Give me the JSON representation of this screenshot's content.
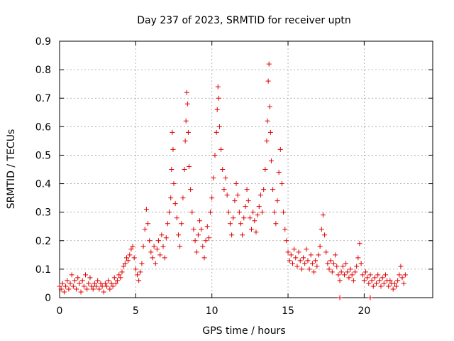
{
  "chart_data": {
    "type": "scatter",
    "title": "Day 237 of 2023, SRMTID for receiver uptn",
    "xlabel": "GPS time / hours",
    "ylabel": "SRMTID / TECUs",
    "xlim": [
      0,
      24.5
    ],
    "ylim": [
      0,
      0.9
    ],
    "xticks": [
      0,
      5,
      10,
      15,
      20
    ],
    "xtick_labels": [
      "0",
      "5",
      "10",
      "15",
      "20"
    ],
    "yticks": [
      0,
      0.1,
      0.2,
      0.3,
      0.4,
      0.5,
      0.6,
      0.7,
      0.8,
      0.9
    ],
    "ytick_labels": [
      "0",
      "0.1",
      "0.2",
      "0.3",
      "0.4",
      "0.5",
      "0.6",
      "0.7",
      "0.8",
      "0.9"
    ],
    "grid": true,
    "marker": "+",
    "series": [
      {
        "name": "SRMTID",
        "color": "#e00000",
        "points": [
          [
            0.0,
            0.04
          ],
          [
            0.1,
            0.03
          ],
          [
            0.2,
            0.05
          ],
          [
            0.3,
            0.02
          ],
          [
            0.4,
            0.04
          ],
          [
            0.5,
            0.06
          ],
          [
            0.6,
            0.03
          ],
          [
            0.7,
            0.05
          ],
          [
            0.8,
            0.08
          ],
          [
            0.9,
            0.04
          ],
          [
            1.0,
            0.06
          ],
          [
            1.1,
            0.03
          ],
          [
            1.2,
            0.07
          ],
          [
            1.3,
            0.05
          ],
          [
            1.4,
            0.02
          ],
          [
            1.5,
            0.06
          ],
          [
            1.6,
            0.04
          ],
          [
            1.7,
            0.08
          ],
          [
            1.8,
            0.03
          ],
          [
            1.9,
            0.05
          ],
          [
            2.0,
            0.07
          ],
          [
            2.1,
            0.04
          ],
          [
            2.2,
            0.03
          ],
          [
            2.3,
            0.05
          ],
          [
            2.4,
            0.04
          ],
          [
            2.5,
            0.06
          ],
          [
            2.6,
            0.03
          ],
          [
            2.7,
            0.05
          ],
          [
            2.8,
            0.04
          ],
          [
            2.9,
            0.02
          ],
          [
            3.0,
            0.05
          ],
          [
            3.1,
            0.04
          ],
          [
            3.2,
            0.06
          ],
          [
            3.3,
            0.03
          ],
          [
            3.4,
            0.05
          ],
          [
            3.5,
            0.04
          ],
          [
            3.6,
            0.07
          ],
          [
            3.7,
            0.05
          ],
          [
            3.8,
            0.06
          ],
          [
            3.9,
            0.08
          ],
          [
            4.0,
            0.07
          ],
          [
            4.1,
            0.09
          ],
          [
            4.2,
            0.11
          ],
          [
            4.3,
            0.12
          ],
          [
            4.4,
            0.14
          ],
          [
            4.5,
            0.13
          ],
          [
            4.6,
            0.15
          ],
          [
            4.7,
            0.17
          ],
          [
            4.8,
            0.18
          ],
          [
            4.9,
            0.14
          ],
          [
            5.0,
            0.1
          ],
          [
            5.1,
            0.08
          ],
          [
            5.2,
            0.06
          ],
          [
            5.3,
            0.09
          ],
          [
            5.4,
            0.12
          ],
          [
            5.5,
            0.18
          ],
          [
            5.6,
            0.24
          ],
          [
            5.7,
            0.31
          ],
          [
            5.8,
            0.26
          ],
          [
            5.9,
            0.2
          ],
          [
            6.0,
            0.16
          ],
          [
            6.1,
            0.14
          ],
          [
            6.2,
            0.18
          ],
          [
            6.3,
            0.12
          ],
          [
            6.4,
            0.17
          ],
          [
            6.5,
            0.2
          ],
          [
            6.6,
            0.15
          ],
          [
            6.7,
            0.22
          ],
          [
            6.8,
            0.18
          ],
          [
            6.9,
            0.14
          ],
          [
            7.0,
            0.21
          ],
          [
            7.1,
            0.26
          ],
          [
            7.2,
            0.3
          ],
          [
            7.3,
            0.35
          ],
          [
            7.35,
            0.45
          ],
          [
            7.4,
            0.58
          ],
          [
            7.45,
            0.52
          ],
          [
            7.5,
            0.4
          ],
          [
            7.6,
            0.33
          ],
          [
            7.7,
            0.28
          ],
          [
            7.8,
            0.22
          ],
          [
            7.9,
            0.18
          ],
          [
            8.0,
            0.26
          ],
          [
            8.1,
            0.35
          ],
          [
            8.2,
            0.45
          ],
          [
            8.25,
            0.55
          ],
          [
            8.3,
            0.62
          ],
          [
            8.35,
            0.72
          ],
          [
            8.4,
            0.68
          ],
          [
            8.45,
            0.58
          ],
          [
            8.5,
            0.46
          ],
          [
            8.6,
            0.38
          ],
          [
            8.7,
            0.3
          ],
          [
            8.8,
            0.24
          ],
          [
            8.9,
            0.2
          ],
          [
            9.0,
            0.16
          ],
          [
            9.1,
            0.22
          ],
          [
            9.2,
            0.27
          ],
          [
            9.3,
            0.24
          ],
          [
            9.4,
            0.18
          ],
          [
            9.5,
            0.14
          ],
          [
            9.6,
            0.2
          ],
          [
            9.7,
            0.25
          ],
          [
            9.8,
            0.21
          ],
          [
            9.9,
            0.3
          ],
          [
            10.0,
            0.35
          ],
          [
            10.1,
            0.42
          ],
          [
            10.2,
            0.5
          ],
          [
            10.3,
            0.58
          ],
          [
            10.35,
            0.66
          ],
          [
            10.4,
            0.74
          ],
          [
            10.45,
            0.7
          ],
          [
            10.5,
            0.6
          ],
          [
            10.6,
            0.52
          ],
          [
            10.7,
            0.45
          ],
          [
            10.8,
            0.38
          ],
          [
            10.9,
            0.42
          ],
          [
            11.0,
            0.36
          ],
          [
            11.1,
            0.3
          ],
          [
            11.2,
            0.26
          ],
          [
            11.3,
            0.22
          ],
          [
            11.4,
            0.28
          ],
          [
            11.5,
            0.34
          ],
          [
            11.6,
            0.4
          ],
          [
            11.7,
            0.36
          ],
          [
            11.8,
            0.3
          ],
          [
            11.9,
            0.26
          ],
          [
            12.0,
            0.22
          ],
          [
            12.1,
            0.28
          ],
          [
            12.2,
            0.32
          ],
          [
            12.3,
            0.38
          ],
          [
            12.4,
            0.34
          ],
          [
            12.5,
            0.28
          ],
          [
            12.6,
            0.24
          ],
          [
            12.7,
            0.3
          ],
          [
            12.8,
            0.27
          ],
          [
            12.9,
            0.23
          ],
          [
            13.0,
            0.29
          ],
          [
            13.1,
            0.32
          ],
          [
            13.2,
            0.36
          ],
          [
            13.3,
            0.3
          ],
          [
            13.4,
            0.38
          ],
          [
            13.5,
            0.45
          ],
          [
            13.6,
            0.55
          ],
          [
            13.65,
            0.62
          ],
          [
            13.7,
            0.76
          ],
          [
            13.75,
            0.82
          ],
          [
            13.8,
            0.67
          ],
          [
            13.85,
            0.58
          ],
          [
            13.9,
            0.48
          ],
          [
            14.0,
            0.38
          ],
          [
            14.1,
            0.3
          ],
          [
            14.2,
            0.26
          ],
          [
            14.3,
            0.34
          ],
          [
            14.4,
            0.44
          ],
          [
            14.5,
            0.52
          ],
          [
            14.6,
            0.4
          ],
          [
            14.7,
            0.3
          ],
          [
            14.8,
            0.24
          ],
          [
            14.9,
            0.2
          ],
          [
            15.0,
            0.16
          ],
          [
            15.1,
            0.13
          ],
          [
            15.2,
            0.15
          ],
          [
            15.3,
            0.12
          ],
          [
            15.4,
            0.17
          ],
          [
            15.5,
            0.14
          ],
          [
            15.6,
            0.11
          ],
          [
            15.7,
            0.16
          ],
          [
            15.8,
            0.13
          ],
          [
            15.9,
            0.1
          ],
          [
            16.0,
            0.14
          ],
          [
            16.1,
            0.12
          ],
          [
            16.2,
            0.17
          ],
          [
            16.3,
            0.13
          ],
          [
            16.4,
            0.1
          ],
          [
            16.5,
            0.15
          ],
          [
            16.6,
            0.12
          ],
          [
            16.7,
            0.09
          ],
          [
            16.8,
            0.13
          ],
          [
            16.9,
            0.11
          ],
          [
            17.0,
            0.15
          ],
          [
            17.1,
            0.18
          ],
          [
            17.2,
            0.24
          ],
          [
            17.3,
            0.29
          ],
          [
            17.4,
            0.22
          ],
          [
            17.5,
            0.16
          ],
          [
            17.6,
            0.12
          ],
          [
            17.7,
            0.1
          ],
          [
            17.8,
            0.13
          ],
          [
            17.9,
            0.09
          ],
          [
            18.0,
            0.12
          ],
          [
            18.1,
            0.15
          ],
          [
            18.2,
            0.11
          ],
          [
            18.3,
            0.08
          ],
          [
            18.4,
            0.06
          ],
          [
            18.5,
            0.09
          ],
          [
            18.6,
            0.11
          ],
          [
            18.7,
            0.08
          ],
          [
            18.8,
            0.12
          ],
          [
            18.9,
            0.09
          ],
          [
            19.0,
            0.07
          ],
          [
            19.1,
            0.1
          ],
          [
            19.2,
            0.08
          ],
          [
            19.3,
            0.06
          ],
          [
            19.4,
            0.09
          ],
          [
            19.5,
            0.11
          ],
          [
            19.6,
            0.14
          ],
          [
            19.7,
            0.19
          ],
          [
            19.8,
            0.12
          ],
          [
            19.9,
            0.08
          ],
          [
            20.0,
            0.06
          ],
          [
            20.1,
            0.09
          ],
          [
            20.2,
            0.07
          ],
          [
            20.3,
            0.05
          ],
          [
            20.4,
            0.08
          ],
          [
            20.5,
            0.06
          ],
          [
            20.6,
            0.04
          ],
          [
            20.7,
            0.07
          ],
          [
            20.8,
            0.05
          ],
          [
            20.9,
            0.08
          ],
          [
            21.0,
            0.06
          ],
          [
            21.1,
            0.04
          ],
          [
            21.2,
            0.07
          ],
          [
            21.3,
            0.05
          ],
          [
            21.4,
            0.08
          ],
          [
            21.5,
            0.06
          ],
          [
            21.6,
            0.04
          ],
          [
            21.7,
            0.06
          ],
          [
            21.8,
            0.05
          ],
          [
            21.9,
            0.03
          ],
          [
            22.0,
            0.05
          ],
          [
            22.1,
            0.04
          ],
          [
            22.2,
            0.06
          ],
          [
            22.3,
            0.08
          ],
          [
            22.4,
            0.11
          ],
          [
            22.5,
            0.07
          ],
          [
            22.6,
            0.05
          ],
          [
            22.7,
            0.08
          ],
          [
            18.4,
            0.0
          ],
          [
            20.4,
            0.0
          ]
        ]
      }
    ]
  }
}
